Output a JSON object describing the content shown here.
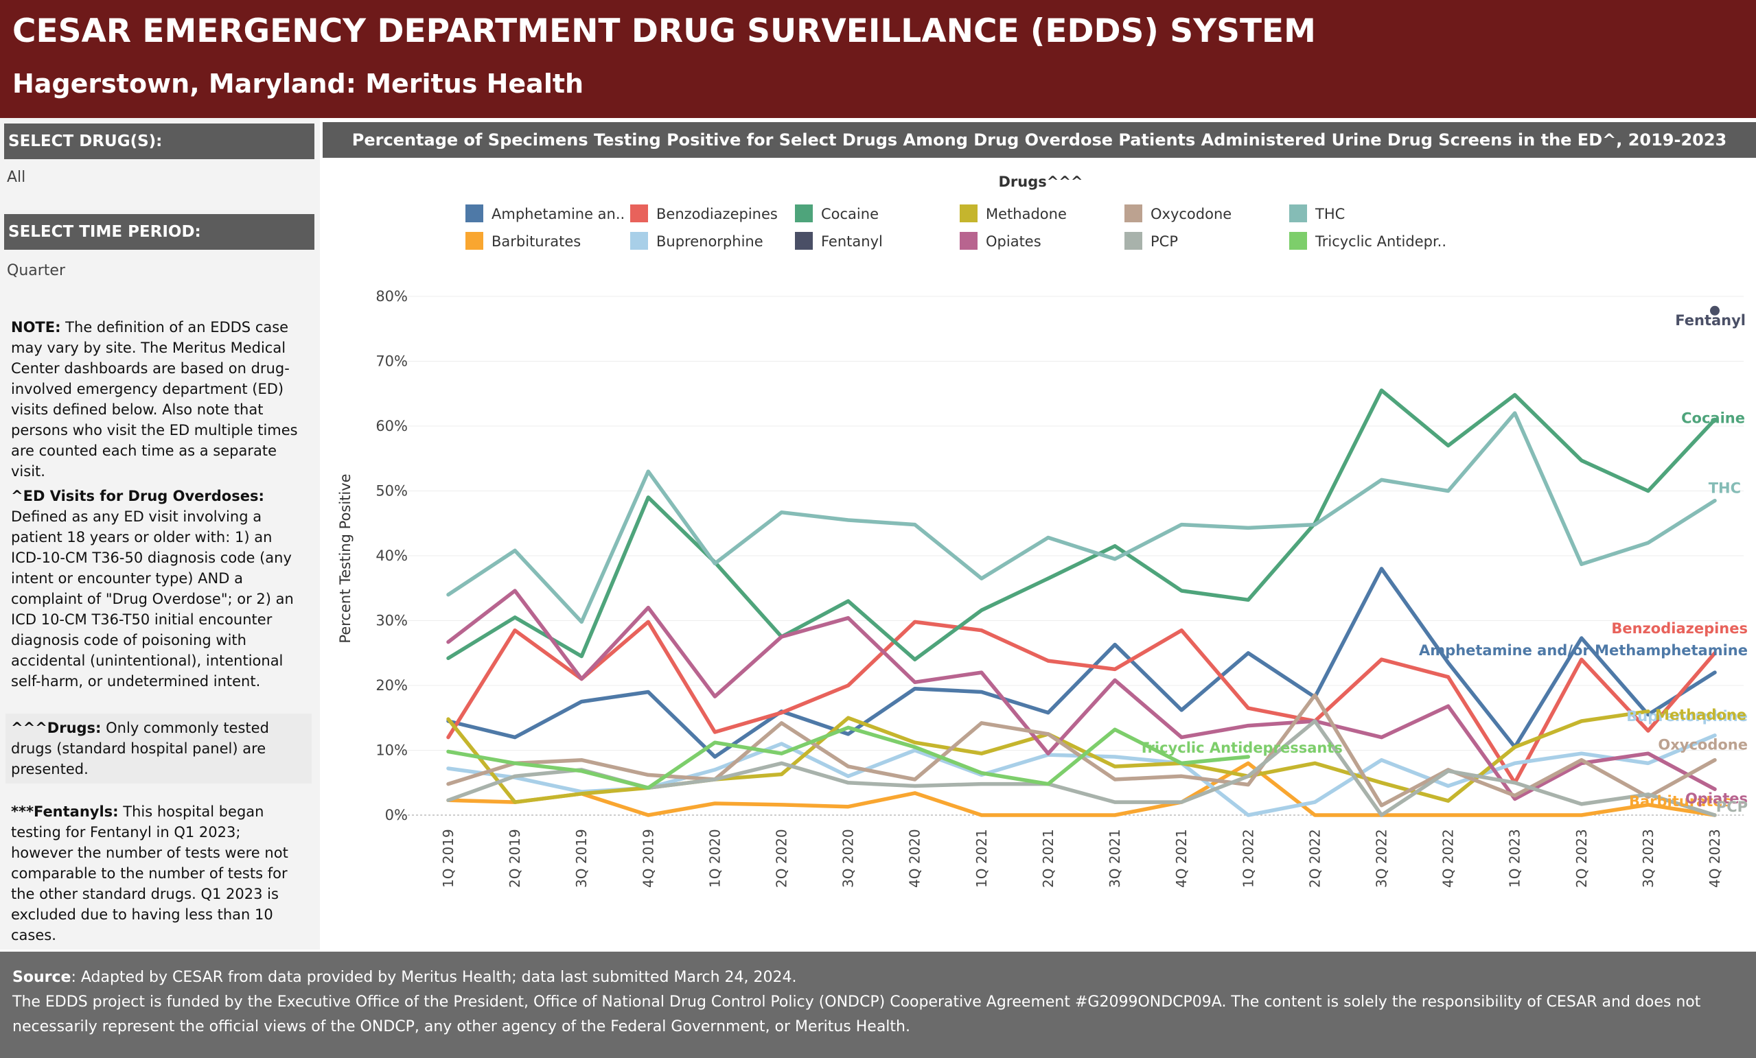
{
  "header": {
    "title": "CESAR EMERGENCY DEPARTMENT DRUG SURVEILLANCE (EDDS) SYSTEM",
    "subtitle": "Hagerstown, Maryland: Meritus Health"
  },
  "sidebar": {
    "drug_filter_label": "SELECT DRUG(S):",
    "drug_filter_value": "All",
    "time_filter_label": "SELECT TIME PERIOD:",
    "time_filter_value": "Quarter",
    "note_label": "NOTE:",
    "note_text": " The definition of an EDDS case may vary by site. The Meritus Medical Center dashboards are based on drug-involved emergency department (ED) visits defined below. Also note that persons who visit the ED multiple times are counted each time as a separate visit.",
    "ed_label": "^ED Visits for Drug Overdoses:",
    "ed_text": " Defined as any ED visit involving a patient 18 years or older with: 1) an ICD-10-CM T36-50 diagnosis code (any intent or encounter type) AND a complaint of \"Drug Overdose\"; or  2) an ICD 10-CM T36-T50 initial encounter diagnosis code of poisoning with accidental (unintentional), intentional self-harm, or undetermined intent.",
    "drugs_label": "^^^Drugs:",
    "drugs_text": " Only commonly tested drugs (standard hospital panel) are presented.",
    "fent_label": "***Fentanyls:",
    "fent_text": " This hospital began testing for Fentanyl in Q1 2023; however the number of tests were not comparable to the number of tests for the other standard drugs. Q1 2023 is excluded due to having less than 10 cases."
  },
  "footer": {
    "source_label": "Source",
    "source_text": ": Adapted by CESAR from data provided by Meritus Health; data last submitted March 24, 2024.",
    "funding_text": "The EDDS project is funded by the Executive Office of the President, Office of National Drug Control Policy (ONDCP) Cooperative Agreement #G2099ONDCP09A. The content is solely the responsibility of CESAR and does not necessarily represent the official views of the ONDCP, any other agency of the Federal Government, or Meritus Health."
  },
  "chart_data": {
    "type": "line",
    "title": "Percentage of Specimens Testing Positive for Select Drugs Among Drug Overdose Patients Administered Urine Drug Screens in the ED^, 2019-2023",
    "legend_title": "Drugs^^^",
    "legend_position": "top",
    "xlabel": "",
    "ylabel": "Percent Testing Positive",
    "ylim": [
      0,
      80
    ],
    "yticks": [
      "0%",
      "10%",
      "20%",
      "30%",
      "40%",
      "50%",
      "60%",
      "70%",
      "80%"
    ],
    "grid": true,
    "categories": [
      "1Q 2019",
      "2Q 2019",
      "3Q 2019",
      "4Q 2019",
      "1Q 2020",
      "2Q 2020",
      "3Q 2020",
      "4Q 2020",
      "1Q 2021",
      "2Q 2021",
      "3Q 2021",
      "4Q 2021",
      "1Q 2022",
      "2Q 2022",
      "3Q 2022",
      "4Q 2022",
      "1Q 2023",
      "2Q 2023",
      "3Q 2023",
      "4Q 2023"
    ],
    "series": [
      {
        "name": "Amphetamine an..",
        "end_label": "Amphetamine and/or Methamphetamine",
        "color": "#4e79a7",
        "values": [
          14.5,
          12,
          17.5,
          19,
          9,
          16,
          12.5,
          19.5,
          19,
          15.8,
          26.3,
          16.2,
          25,
          18.2,
          38,
          23.5,
          10.5,
          27.3,
          15.5,
          22
        ]
      },
      {
        "name": "Barbiturates",
        "end_label": "Barbiturates",
        "color": "#f9a630",
        "values": [
          2.3,
          2,
          3.3,
          0,
          1.8,
          1.6,
          1.3,
          3.4,
          0,
          0,
          0,
          2,
          8,
          0,
          0,
          0,
          0,
          0,
          1.6,
          0
        ]
      },
      {
        "name": "Benzodiazepines",
        "end_label": "Benzodiazepines",
        "color": "#e8625b",
        "values": [
          12,
          28.5,
          21,
          29.8,
          12.8,
          15.8,
          20,
          29.8,
          28.5,
          23.8,
          22.5,
          28.5,
          16.5,
          14.5,
          24,
          21.3,
          5,
          24,
          13,
          25
        ]
      },
      {
        "name": "Buprenorphine",
        "end_label": "Buprenorphine",
        "color": "#a8cfe8",
        "values": [
          7.2,
          5.8,
          3.6,
          4.2,
          7,
          11,
          6,
          10,
          6.2,
          9.3,
          9,
          8,
          0,
          2,
          8.5,
          4.5,
          8,
          9.5,
          8,
          12.3
        ]
      },
      {
        "name": "Cocaine",
        "end_label": "Cocaine",
        "color": "#4ea47b",
        "values": [
          24.2,
          30.5,
          24.5,
          49,
          39,
          27.5,
          33,
          24,
          31.6,
          36.5,
          41.5,
          34.6,
          33.2,
          45,
          65.5,
          57,
          64.8,
          54.7,
          50,
          61
        ]
      },
      {
        "name": "Fentanyl",
        "end_label": "Fentanyl",
        "color": "#4a4f66",
        "values": [
          null,
          null,
          null,
          null,
          null,
          null,
          null,
          null,
          null,
          null,
          null,
          null,
          null,
          null,
          null,
          null,
          null,
          null,
          null,
          77.8
        ]
      },
      {
        "name": "Methadone",
        "end_label": "Methadone",
        "color": "#c5b52d",
        "values": [
          14.8,
          2,
          3.3,
          4.2,
          5.5,
          6.3,
          15,
          11.2,
          9.5,
          12.5,
          7.5,
          8,
          6,
          8,
          5,
          2.2,
          10.5,
          14.5,
          16,
          null
        ]
      },
      {
        "name": "Opiates",
        "end_label": "Opiates",
        "color": "#b8648f",
        "values": [
          26.7,
          34.6,
          21,
          32,
          18.3,
          27.5,
          30.4,
          20.5,
          22,
          9.5,
          20.8,
          12,
          13.8,
          14.5,
          12,
          16.8,
          2.5,
          8,
          9.5,
          4
        ]
      },
      {
        "name": "Oxycodone",
        "end_label": "Oxycodone",
        "color": "#bca290",
        "values": [
          4.8,
          8,
          8.5,
          6.2,
          5.5,
          14.2,
          7.5,
          5.5,
          14.2,
          12.5,
          5.5,
          6,
          4.7,
          18.5,
          1.5,
          7,
          3,
          8.5,
          2.8,
          8.5
        ]
      },
      {
        "name": "PCP",
        "end_label": "PCP",
        "color": "#a8b2ab",
        "values": [
          2.3,
          6,
          7,
          4.2,
          5.5,
          8,
          5,
          4.5,
          4.8,
          4.8,
          2,
          2,
          6,
          14.5,
          0,
          6.8,
          5,
          1.7,
          3.2,
          0
        ]
      },
      {
        "name": "THC",
        "end_label": "THC",
        "color": "#85bcb6",
        "values": [
          34,
          40.8,
          29.8,
          53,
          38.8,
          46.7,
          45.5,
          44.8,
          36.5,
          42.8,
          39.5,
          44.8,
          44.3,
          44.8,
          51.7,
          50,
          62,
          38.7,
          42,
          48.5
        ]
      },
      {
        "name": "Tricyclic Antidepr..",
        "end_label": "Tricyclic Antidepressants",
        "color": "#7dce6b",
        "values": [
          9.8,
          8,
          6.8,
          4.2,
          11.2,
          9.5,
          13.5,
          10.5,
          6.5,
          4.8,
          13.2,
          8,
          9,
          null,
          null,
          null,
          null,
          null,
          null,
          null
        ]
      }
    ]
  }
}
